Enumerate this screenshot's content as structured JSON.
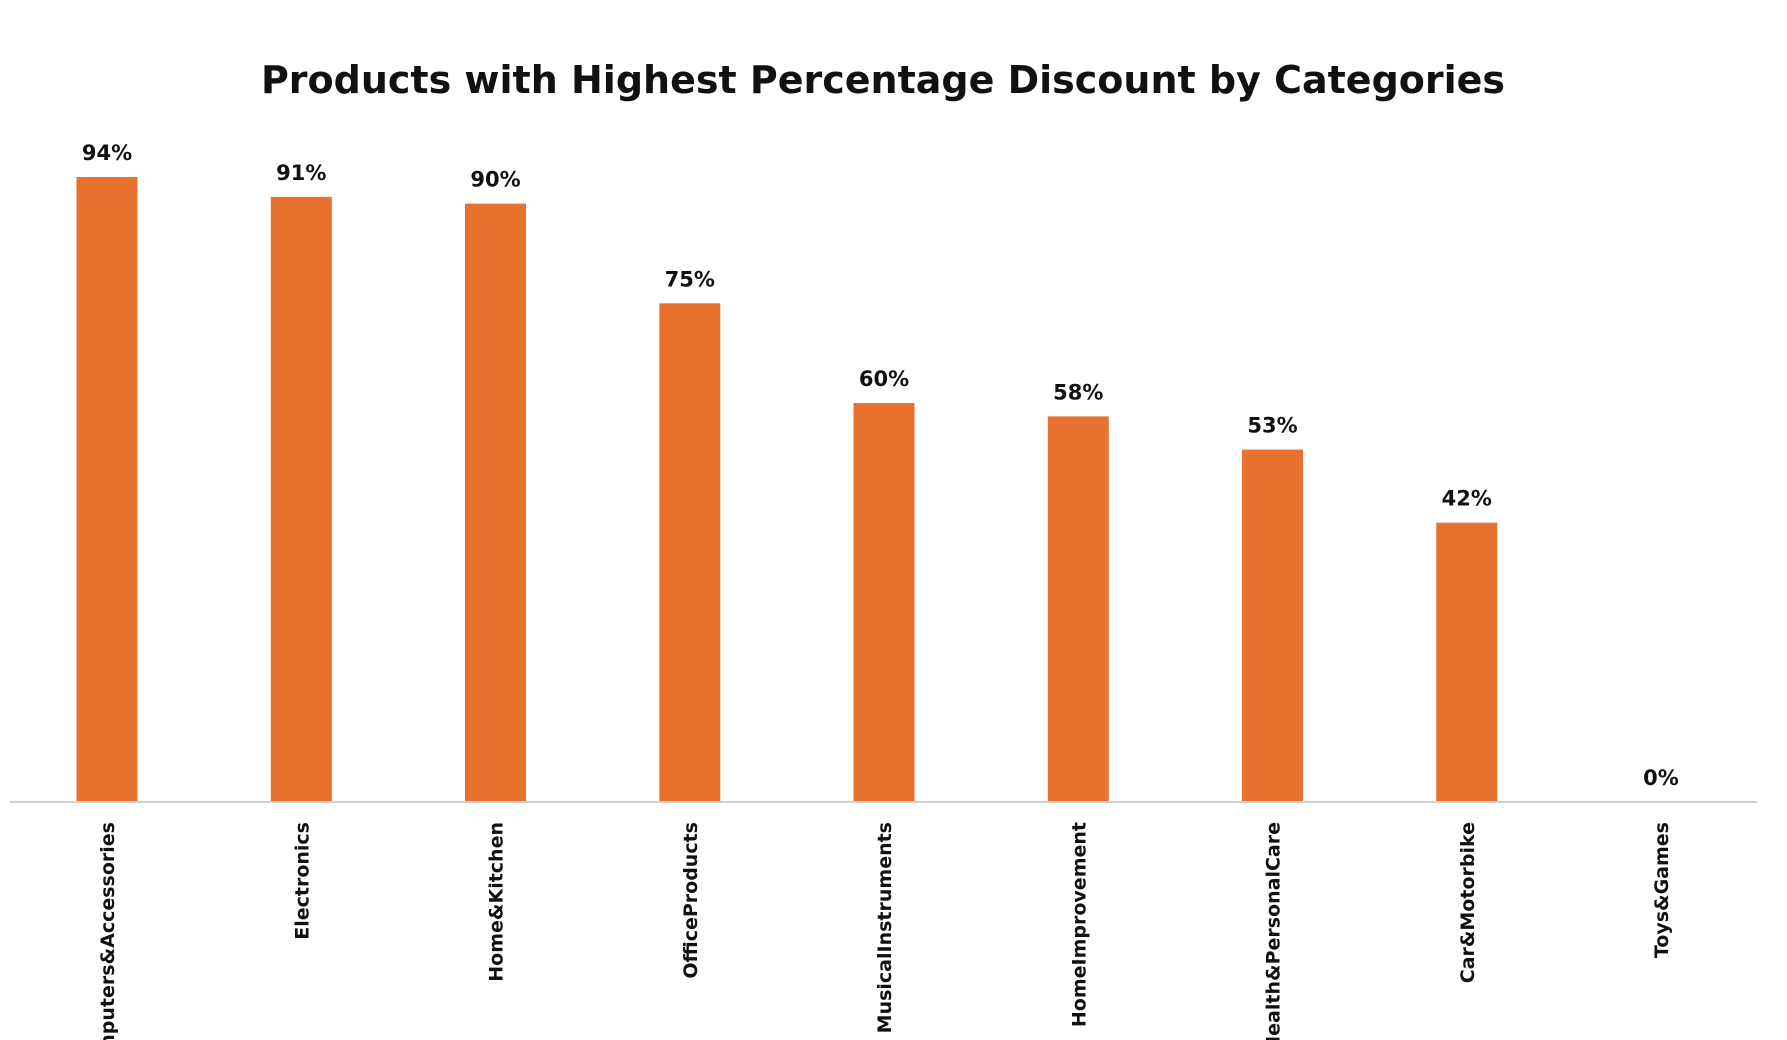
{
  "chart_data": {
    "type": "bar",
    "title": "Products with Highest Percentage Discount by Categories",
    "xlabel": "",
    "ylabel": "",
    "categories": [
      "Computers&Accessories",
      "Electronics",
      "Home&Kitchen",
      "OfficeProducts",
      "MusicalInstruments",
      "HomeImprovement",
      "Health&PersonalCare",
      "Car&Motorbike",
      "Toys&Games"
    ],
    "values": [
      94,
      91,
      90,
      75,
      60,
      58,
      53,
      42,
      0
    ],
    "data_labels": [
      "94%",
      "91%",
      "90%",
      "75%",
      "60%",
      "58%",
      "53%",
      "42%",
      "0%"
    ],
    "ylim": [
      0,
      100
    ],
    "grid": false,
    "legend": "none",
    "bar_color": "#E8712F",
    "axis_color": "#D0D0D0"
  }
}
